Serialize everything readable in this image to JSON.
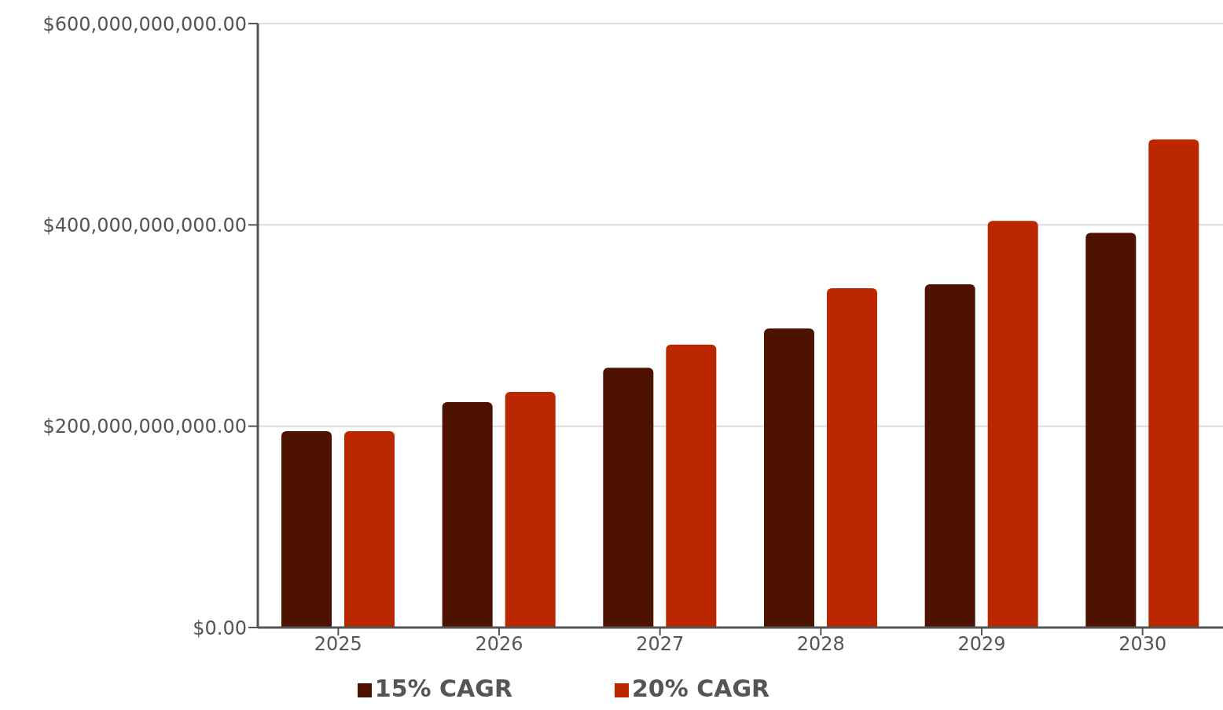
{
  "chart_data": {
    "type": "bar",
    "categories": [
      "2025",
      "2026",
      "2027",
      "2028",
      "2029",
      "2030"
    ],
    "series": [
      {
        "name": "15% CAGR",
        "color": "#4e1200",
        "values": [
          195000000000,
          224000000000,
          258000000000,
          297000000000,
          341000000000,
          392000000000
        ]
      },
      {
        "name": "20% CAGR",
        "color": "#bb2800",
        "values": [
          195000000000,
          234000000000,
          281000000000,
          337000000000,
          404000000000,
          485000000000
        ]
      }
    ],
    "ylim": [
      0,
      600000000000
    ],
    "yticks": [
      {
        "value": 0,
        "label": "$0.00"
      },
      {
        "value": 200000000000,
        "label": "$200,000,000,000.00"
      },
      {
        "value": 400000000000,
        "label": "$400,000,000,000.00"
      },
      {
        "value": 600000000000,
        "label": "$600,000,000,000.00"
      }
    ],
    "grid": "y",
    "legend": "bottom"
  }
}
